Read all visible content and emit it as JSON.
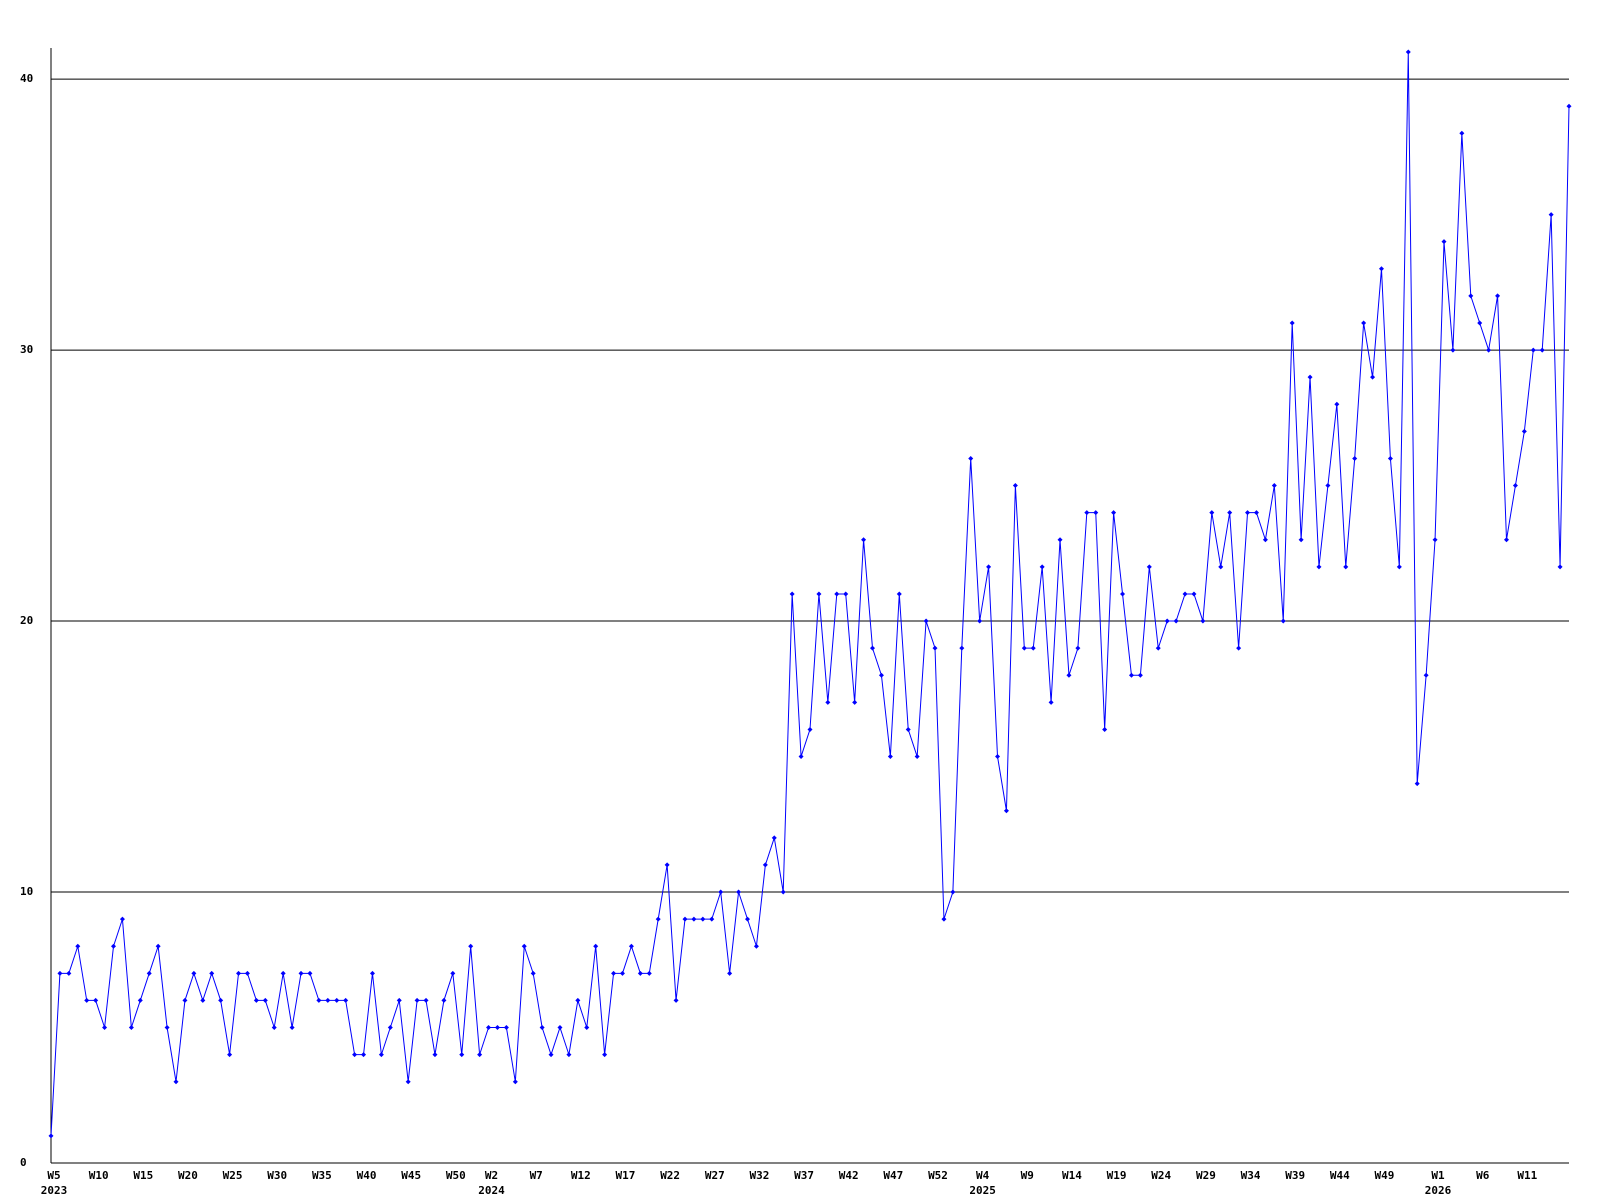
{
  "chart_data": {
    "type": "line",
    "categories": [
      "W5",
      null,
      null,
      null,
      null,
      "W10",
      null,
      null,
      null,
      null,
      "W15",
      null,
      null,
      null,
      null,
      "W20",
      null,
      null,
      null,
      null,
      "W25",
      null,
      null,
      null,
      null,
      "W30",
      null,
      null,
      null,
      null,
      "W35",
      null,
      null,
      null,
      null,
      "W40",
      null,
      null,
      null,
      null,
      "W45",
      null,
      null,
      null,
      null,
      "W50",
      null,
      null,
      null,
      "W2",
      null,
      null,
      null,
      null,
      "W7",
      null,
      null,
      null,
      null,
      "W12",
      null,
      null,
      null,
      null,
      "W17",
      null,
      null,
      null,
      null,
      "W22",
      null,
      null,
      null,
      null,
      "W27",
      null,
      null,
      null,
      null,
      "W32",
      null,
      null,
      null,
      null,
      "W37",
      null,
      null,
      null,
      null,
      "W42",
      null,
      null,
      null,
      null,
      "W47",
      null,
      null,
      null,
      null,
      "W52",
      null,
      null,
      null,
      null,
      "W4",
      null,
      null,
      null,
      null,
      "W9",
      null,
      null,
      null,
      null,
      "W14",
      null,
      null,
      null,
      null,
      "W19",
      null,
      null,
      null,
      null,
      "W24",
      null,
      null,
      null,
      null,
      "W29",
      null,
      null,
      null,
      null,
      "W34",
      null,
      null,
      null,
      null,
      "W39",
      null,
      null,
      null,
      null,
      "W44",
      null,
      null,
      null,
      null,
      "W49",
      null,
      null,
      null,
      null,
      null,
      "W1",
      null,
      null,
      null,
      null,
      "W6",
      null,
      null,
      null,
      null,
      "W11",
      null,
      null,
      null,
      null,
      null
    ],
    "year_labels": [
      "2023",
      null,
      null,
      null,
      null,
      null,
      null,
      null,
      null,
      null,
      null,
      null,
      null,
      null,
      null,
      null,
      null,
      null,
      null,
      null,
      null,
      null,
      null,
      null,
      null,
      null,
      null,
      null,
      null,
      null,
      null,
      null,
      null,
      null,
      null,
      null,
      null,
      null,
      null,
      null,
      null,
      null,
      null,
      null,
      null,
      null,
      null,
      null,
      null,
      "2024",
      null,
      null,
      null,
      null,
      null,
      null,
      null,
      null,
      null,
      null,
      null,
      null,
      null,
      null,
      null,
      null,
      null,
      null,
      null,
      null,
      null,
      null,
      null,
      null,
      null,
      null,
      null,
      null,
      null,
      null,
      null,
      null,
      null,
      null,
      null,
      null,
      null,
      null,
      null,
      null,
      null,
      null,
      null,
      null,
      null,
      null,
      null,
      null,
      null,
      null,
      null,
      null,
      null,
      null,
      "2025",
      null,
      null,
      null,
      null,
      null,
      null,
      null,
      null,
      null,
      null,
      null,
      null,
      null,
      null,
      null,
      null,
      null,
      null,
      null,
      null,
      null,
      null,
      null,
      null,
      null,
      null,
      null,
      null,
      null,
      null,
      null,
      null,
      null,
      null,
      null,
      null,
      null,
      null,
      null,
      null,
      null,
      null,
      null,
      null,
      null,
      null,
      null,
      null,
      null,
      null,
      "2026",
      null,
      null,
      null,
      null,
      null,
      null,
      null,
      null,
      null,
      null,
      null,
      null,
      null,
      null,
      null
    ],
    "series": [
      {
        "color": "#0000ff",
        "values": [
          1,
          7,
          7,
          8,
          6,
          6,
          5,
          8,
          9,
          5,
          6,
          7,
          8,
          5,
          3,
          6,
          7,
          6,
          7,
          6,
          4,
          7,
          7,
          6,
          6,
          5,
          7,
          5,
          7,
          7,
          6,
          6,
          6,
          6,
          4,
          4,
          7,
          4,
          5,
          6,
          3,
          6,
          6,
          4,
          6,
          7,
          4,
          8,
          4,
          5,
          5,
          5,
          3,
          8,
          7,
          5,
          4,
          5,
          4,
          6,
          5,
          8,
          4,
          7,
          7,
          8,
          7,
          7,
          9,
          11,
          6,
          9,
          9,
          9,
          9,
          10,
          7,
          10,
          9,
          8,
          11,
          12,
          10,
          21,
          15,
          16,
          21,
          17,
          21,
          21,
          17,
          23,
          19,
          18,
          15,
          21,
          16,
          15,
          20,
          19,
          9,
          10,
          19,
          26,
          20,
          22,
          15,
          13,
          25,
          19,
          19,
          22,
          17,
          23,
          18,
          19,
          24,
          24,
          16,
          24,
          21,
          18,
          18,
          22,
          19,
          20,
          20,
          21,
          21,
          20,
          24,
          22,
          24,
          19,
          24,
          24,
          23,
          25,
          20,
          31,
          23,
          29,
          22,
          25,
          28,
          22,
          26,
          31,
          29,
          33,
          26,
          22,
          41,
          14,
          18,
          23,
          34,
          30,
          38,
          32,
          31,
          30,
          32,
          23,
          25,
          27,
          30,
          30,
          35,
          22,
          39
        ]
      }
    ],
    "ylim": [
      0,
      41
    ],
    "yticks": [
      0,
      10,
      20,
      30,
      40
    ],
    "grid": true
  }
}
